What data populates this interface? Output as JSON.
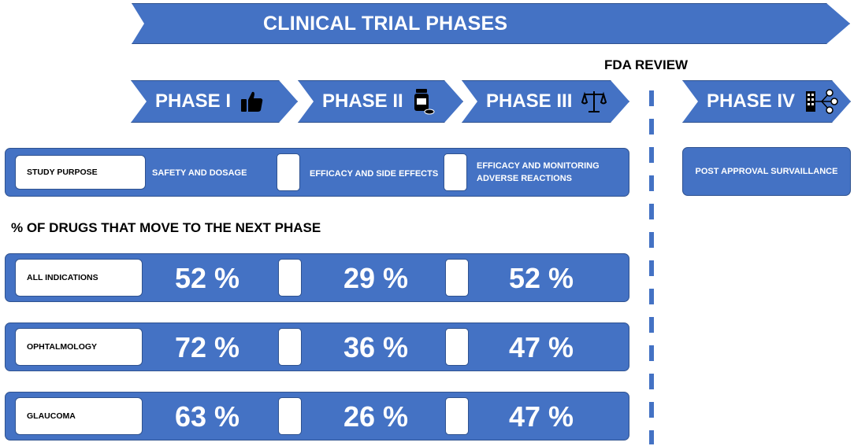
{
  "header": {
    "title": "CLINICAL TRIAL PHASES"
  },
  "fda": {
    "label": "FDA REVIEW"
  },
  "phases": [
    {
      "label": "PHASE I",
      "icon": "thumbs-up-icon"
    },
    {
      "label": "PHASE II",
      "icon": "pill-bottle-icon"
    },
    {
      "label": "PHASE III",
      "icon": "scales-icon"
    },
    {
      "label": "PHASE IV",
      "icon": "network-building-icon"
    }
  ],
  "purpose": {
    "label": "STUDY PURPOSE",
    "items": [
      "SAFETY AND DOSAGE",
      "EFFICACY AND SIDE EFFECTS",
      "EFFICACY AND MONITORING ADVERSE REACTIONS"
    ],
    "post": "POST APPROVAL SURVAILLANCE"
  },
  "section": {
    "heading": "% OF DRUGS THAT MOVE TO THE NEXT PHASE"
  },
  "rows": [
    {
      "label": "ALL INDICATIONS",
      "values": [
        "52 %",
        "29 %",
        "52 %"
      ]
    },
    {
      "label": "OPHTALMOLOGY",
      "values": [
        "72 %",
        "36 %",
        "47 %"
      ]
    },
    {
      "label": "GLAUCOMA",
      "values": [
        "63 %",
        "26 %",
        "47 %"
      ]
    }
  ],
  "colors": {
    "primary": "#4472c4",
    "border": "#2f528f"
  }
}
